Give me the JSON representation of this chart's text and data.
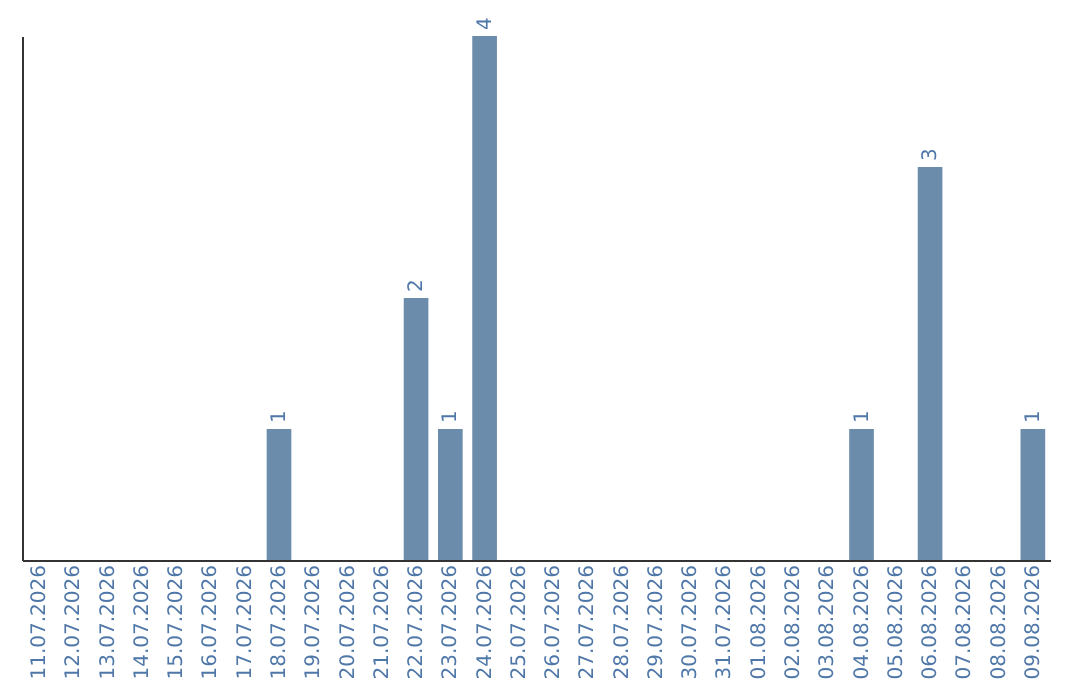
{
  "chart_data": {
    "type": "bar",
    "categories": [
      "11.07.2026",
      "12.07.2026",
      "13.07.2026",
      "14.07.2026",
      "15.07.2026",
      "16.07.2026",
      "17.07.2026",
      "18.07.2026",
      "19.07.2026",
      "20.07.2026",
      "21.07.2026",
      "22.07.2026",
      "23.07.2026",
      "24.07.2026",
      "25.07.2026",
      "26.07.2026",
      "27.07.2026",
      "28.07.2026",
      "29.07.2026",
      "30.07.2026",
      "31.07.2026",
      "01.08.2026",
      "02.08.2026",
      "03.08.2026",
      "04.08.2026",
      "05.08.2026",
      "06.08.2026",
      "07.08.2026",
      "08.08.2026",
      "09.08.2026"
    ],
    "values": [
      0,
      0,
      0,
      0,
      0,
      0,
      0,
      1,
      0,
      0,
      0,
      2,
      1,
      4,
      0,
      0,
      0,
      0,
      0,
      0,
      0,
      0,
      0,
      0,
      1,
      0,
      3,
      0,
      0,
      1
    ],
    "value_labels": [
      null,
      null,
      null,
      null,
      null,
      null,
      null,
      "1",
      null,
      null,
      null,
      "2",
      "1",
      "4",
      null,
      null,
      null,
      null,
      null,
      null,
      null,
      null,
      null,
      null,
      "1",
      null,
      "3",
      null,
      null,
      "1"
    ],
    "color": "#6c8cab",
    "tick_labels": "x"
  }
}
